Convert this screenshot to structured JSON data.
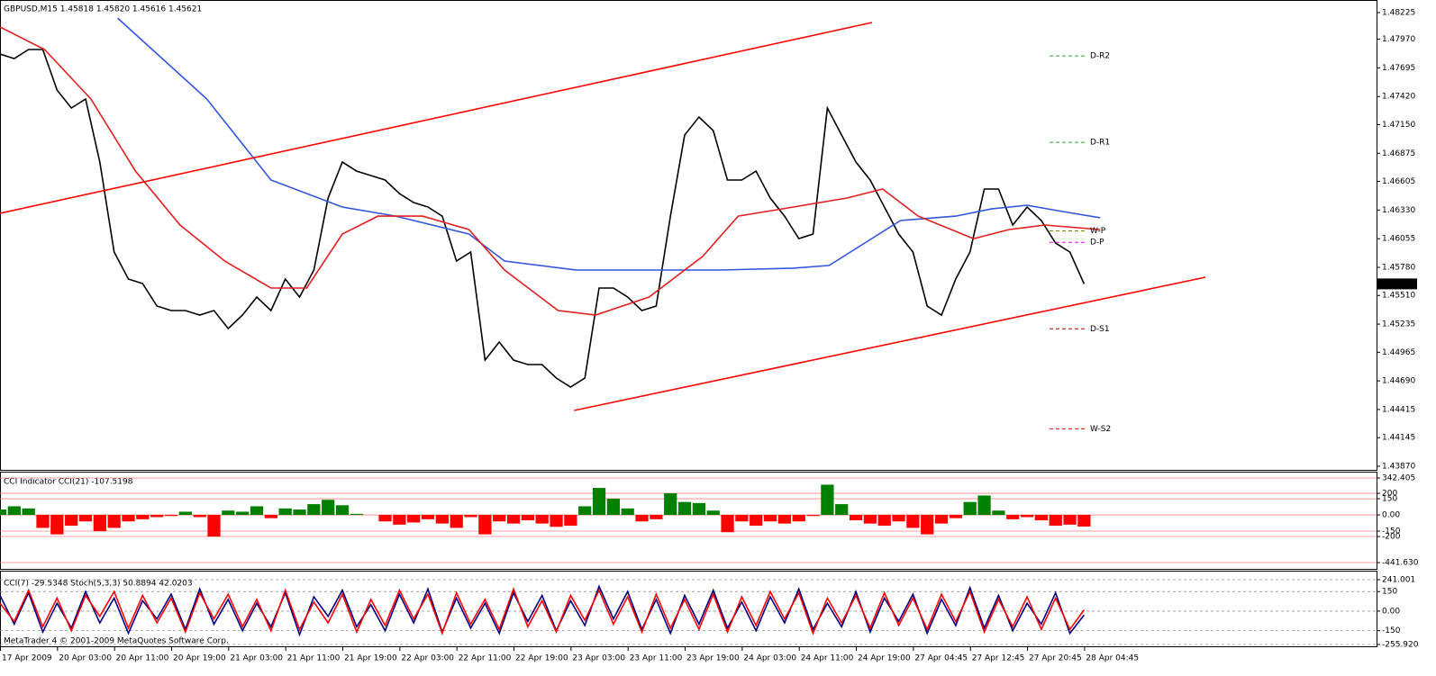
{
  "footer": "MetaTrader 4 © 2001-2009 MetaQuotes Software Corp.",
  "chart_data": [
    {
      "type": "line",
      "title": "GBPUSD,M15 1.45818 1.45820 1.45616 1.45621",
      "xlim": [
        0,
        772
      ],
      "ylim": [
        1.43853,
        1.48329
      ],
      "yticks": [
        1.48225,
        {
          "value": 1.4797,
          "label": "1.47970"
        },
        1.47695,
        {
          "value": 1.4742,
          "label": "1.47420"
        },
        {
          "value": 1.4715,
          "label": "1.47150"
        },
        1.46875,
        1.46605,
        {
          "value": 1.4633,
          "label": "1.46330"
        },
        1.46055,
        {
          "value": 1.4578,
          "label": "1.45780"
        },
        {
          "value": 1.4551,
          "label": "1.45510"
        },
        1.45235,
        1.44965,
        {
          "value": 1.4469,
          "label": "1.44690"
        },
        1.44415,
        1.44145,
        {
          "value": 1.4387,
          "label": "1.43870"
        }
      ],
      "xticks": [
        {
          "value": 0,
          "label": "17 Apr 2009"
        },
        {
          "value": 32,
          "label": "20 Apr 03:00"
        },
        {
          "value": 64,
          "label": "20 Apr 11:00"
        },
        {
          "value": 96,
          "label": "20 Apr 19:00"
        },
        {
          "value": 128,
          "label": "21 Apr 03:00"
        },
        {
          "value": 160,
          "label": "21 Apr 11:00"
        },
        {
          "value": 192,
          "label": "21 Apr 19:00"
        },
        {
          "value": 224,
          "label": "22 Apr 03:00"
        },
        {
          "value": 256,
          "label": "22 Apr 11:00"
        },
        {
          "value": 288,
          "label": "22 Apr 19:00"
        },
        {
          "value": 320,
          "label": "23 Apr 03:00"
        },
        {
          "value": 352,
          "label": "23 Apr 11:00"
        },
        {
          "value": 384,
          "label": "23 Apr 19:00"
        },
        {
          "value": 416,
          "label": "24 Apr 03:00"
        },
        {
          "value": 448,
          "label": "24 Apr 11:00"
        },
        {
          "value": 480,
          "label": "24 Apr 19:00"
        },
        {
          "value": 512,
          "label": "27 Apr 04:45"
        },
        {
          "value": 544,
          "label": "27 Apr 12:45"
        },
        {
          "value": 576,
          "label": "27 Apr 20:45"
        },
        {
          "value": 608,
          "label": "28 Apr 04:45"
        }
      ],
      "series": [
        {
          "color": "#000000",
          "x": [
            0,
            8,
            16,
            24,
            32,
            40,
            48,
            56,
            64,
            72,
            80,
            88,
            96,
            104,
            112,
            120,
            128,
            136,
            144,
            152,
            160,
            168,
            176,
            184,
            192,
            200,
            208,
            216,
            224,
            232,
            240,
            248,
            256,
            264,
            272,
            280,
            288,
            296,
            304,
            312,
            320,
            328,
            336,
            344,
            352,
            360,
            368,
            376,
            384,
            392,
            400,
            408,
            416,
            424,
            432,
            440,
            448,
            456,
            464,
            472,
            480,
            488,
            496,
            504,
            512,
            520,
            528,
            536,
            544,
            552,
            560,
            568,
            576,
            584,
            592,
            600,
            608
          ],
          "values": [
            1.47828,
            1.47784,
            1.47871,
            1.47871,
            1.47482,
            1.47309,
            1.47396,
            1.46791,
            1.45927,
            1.45668,
            1.45624,
            1.45408,
            1.45365,
            1.45365,
            1.45322,
            1.45365,
            1.45192,
            1.45322,
            1.45495,
            1.45365,
            1.45668,
            1.45495,
            1.45754,
            1.46445,
            1.46791,
            1.46704,
            1.46661,
            1.46618,
            1.46488,
            1.46402,
            1.46359,
            1.46272,
            1.4584,
            1.45927,
            1.4489,
            1.45063,
            1.4489,
            1.44847,
            1.44847,
            1.44717,
            1.44631,
            1.44717,
            1.45581,
            1.45581,
            1.45495,
            1.45365,
            1.45408,
            1.46272,
            1.4705,
            1.47223,
            1.47093,
            1.46618,
            1.46618,
            1.46704,
            1.46445,
            1.46272,
            1.46056,
            1.461,
            1.47309,
            1.4705,
            1.46791,
            1.46618,
            1.46359,
            1.461,
            1.45927,
            1.45408,
            1.45322,
            1.45668,
            1.45927,
            1.46532,
            1.46532,
            1.46186,
            1.46359,
            1.46229,
            1.46013,
            1.45927,
            1.45621
          ]
        },
        {
          "color": "#3355dd",
          "x": [
            66,
            116,
            152,
            192,
            222,
            263,
            283,
            323,
            364,
            404,
            445,
            465,
            485,
            505,
            536,
            556,
            576,
            596,
            617
          ],
          "values": [
            1.48173,
            1.47396,
            1.46618,
            1.46359,
            1.46272,
            1.461,
            1.4584,
            1.45754,
            1.45754,
            1.45754,
            1.45772,
            1.45798,
            1.46013,
            1.46229,
            1.46272,
            1.46341,
            1.46376,
            1.46316,
            1.46256
          ]
        },
        {
          "color": "#e02020",
          "x": [
            0,
            25,
            51,
            76,
            101,
            126,
            152,
            172,
            192,
            212,
            237,
            263,
            283,
            313,
            334,
            364,
            394,
            414,
            445,
            475,
            495,
            515,
            546,
            566,
            586,
            617
          ],
          "values": [
            1.48087,
            1.47871,
            1.47396,
            1.46704,
            1.46186,
            1.4584,
            1.45581,
            1.45581,
            1.461,
            1.46272,
            1.46272,
            1.46143,
            1.45754,
            1.45365,
            1.45322,
            1.45495,
            1.45884,
            1.46272,
            1.46359,
            1.46445,
            1.46532,
            1.46272,
            1.46056,
            1.46143,
            1.46186,
            1.46143
          ]
        },
        {
          "color": "#ff0000",
          "x": [
            0,
            489
          ],
          "values": [
            1.46298,
            1.4813
          ]
        },
        {
          "color": "#ff0000",
          "x": [
            322,
            676
          ],
          "values": [
            1.44406,
            1.45685
          ]
        }
      ],
      "levels": [
        {
          "label": "D-R2",
          "value": 1.4781,
          "color": "#22aa22"
        },
        {
          "label": "D-R1",
          "value": 1.4698,
          "color": "#22aa22"
        },
        {
          "label": "W-P",
          "value": 1.4613,
          "color": "#808000"
        },
        {
          "label": "D-P",
          "value": 1.4602,
          "color": "#ff00ff"
        },
        {
          "label": "D-S1",
          "value": 1.4519,
          "color": "#aa0000"
        },
        {
          "label": "W-S2",
          "value": 1.4423,
          "color": "#dd0000"
        }
      ],
      "last_price": 1.45621
    },
    {
      "type": "bar",
      "title": "CCI Indicator  CCI(21) -107.5198",
      "xlim": [
        0,
        772
      ],
      "ylim": [
        -441.63,
        342.405
      ],
      "yticks": [
        342.405,
        200,
        150,
        {
          "value": 0,
          "label": "0.00"
        },
        -150,
        -200,
        {
          "value": -441.63,
          "label": "-441.630"
        }
      ],
      "grid": true,
      "grid_color": "#f08080",
      "colors": {
        "positive": "#008000",
        "negative": "#ff0000"
      },
      "x": [
        0,
        8,
        16,
        24,
        32,
        40,
        48,
        56,
        64,
        72,
        80,
        88,
        96,
        104,
        112,
        120,
        128,
        136,
        144,
        152,
        160,
        168,
        176,
        184,
        192,
        200,
        208,
        216,
        224,
        232,
        240,
        248,
        256,
        264,
        272,
        280,
        288,
        296,
        304,
        312,
        320,
        328,
        336,
        344,
        352,
        360,
        368,
        376,
        384,
        392,
        400,
        408,
        416,
        424,
        432,
        440,
        448,
        456,
        464,
        472,
        480,
        488,
        496,
        504,
        512,
        520,
        528,
        536,
        544,
        552,
        560,
        568,
        576,
        584,
        592,
        600,
        608
      ],
      "values": [
        50,
        80,
        60,
        -120,
        -180,
        -100,
        -60,
        -150,
        -120,
        -60,
        -40,
        -20,
        -10,
        30,
        -20,
        -200,
        40,
        30,
        80,
        -30,
        60,
        50,
        100,
        140,
        90,
        10,
        0,
        -60,
        -90,
        -70,
        -40,
        -80,
        -120,
        -20,
        -180,
        -60,
        -80,
        -50,
        -80,
        -110,
        -100,
        80,
        250,
        150,
        60,
        -60,
        -40,
        200,
        120,
        110,
        40,
        -160,
        -60,
        -100,
        -60,
        -80,
        -60,
        -10,
        280,
        100,
        -50,
        -80,
        -100,
        -60,
        -120,
        -180,
        -80,
        -30,
        120,
        180,
        40,
        -40,
        -20,
        -50,
        -100,
        -90,
        -107.5198
      ]
    },
    {
      "type": "line",
      "title": "CCI(7) -29.5348  Stoch(5,3,3) 50.8894 42.0203",
      "xlim": [
        0,
        772
      ],
      "ylim": [
        -255.92,
        241.001
      ],
      "yticks": [
        241.001,
        150,
        {
          "value": 0,
          "label": "0.00"
        },
        -150,
        {
          "value": -255.92,
          "label": "-255.920"
        }
      ],
      "grid": true,
      "grid_color": "#909090",
      "grid_dash": true,
      "series": [
        {
          "color": "#000080",
          "x": [
            0,
            8,
            16,
            24,
            32,
            40,
            48,
            56,
            64,
            72,
            80,
            88,
            96,
            104,
            112,
            120,
            128,
            136,
            144,
            152,
            160,
            168,
            176,
            184,
            192,
            200,
            208,
            216,
            224,
            232,
            240,
            248,
            256,
            264,
            272,
            280,
            288,
            296,
            304,
            312,
            320,
            328,
            336,
            344,
            352,
            360,
            368,
            376,
            384,
            392,
            400,
            408,
            416,
            424,
            432,
            440,
            448,
            456,
            464,
            472,
            480,
            488,
            496,
            504,
            512,
            520,
            528,
            536,
            544,
            552,
            560,
            568,
            576,
            584,
            592,
            600,
            608
          ],
          "values": [
            120,
            -100,
            140,
            -160,
            60,
            -130,
            150,
            -90,
            100,
            -170,
            80,
            -60,
            130,
            -140,
            170,
            -100,
            90,
            -150,
            60,
            -120,
            140,
            -180,
            110,
            -40,
            160,
            -120,
            50,
            -150,
            130,
            -90,
            170,
            -160,
            100,
            -130,
            60,
            -170,
            140,
            -80,
            120,
            -150,
            80,
            -110,
            190,
            -60,
            150,
            -140,
            90,
            -170,
            120,
            -100,
            160,
            -130,
            70,
            -150,
            110,
            -90,
            170,
            -140,
            60,
            -120,
            150,
            -160,
            100,
            -80,
            130,
            -170,
            90,
            -110,
            180,
            -130,
            120,
            -150,
            60,
            -100,
            140,
            -170,
            -29.5348
          ]
        },
        {
          "color": "#ff0000",
          "x": [
            0,
            8,
            16,
            24,
            32,
            40,
            48,
            56,
            64,
            72,
            80,
            88,
            96,
            104,
            112,
            120,
            128,
            136,
            144,
            152,
            160,
            168,
            176,
            184,
            192,
            200,
            208,
            216,
            224,
            232,
            240,
            248,
            256,
            264,
            272,
            280,
            288,
            296,
            304,
            312,
            320,
            328,
            336,
            344,
            352,
            360,
            368,
            376,
            384,
            392,
            400,
            408,
            416,
            424,
            432,
            440,
            448,
            456,
            464,
            472,
            480,
            488,
            496,
            504,
            512,
            520,
            528,
            536,
            544,
            552,
            560,
            568,
            576,
            584,
            592,
            600,
            608
          ],
          "values": [
            60,
            -80,
            160,
            -120,
            100,
            -150,
            120,
            -40,
            150,
            -130,
            120,
            -90,
            100,
            -160,
            140,
            -60,
            130,
            -120,
            90,
            -150,
            160,
            -140,
            70,
            -90,
            130,
            -160,
            90,
            -110,
            160,
            -60,
            130,
            -170,
            140,
            -100,
            90,
            -140,
            170,
            -120,
            80,
            -160,
            120,
            -70,
            160,
            -100,
            110,
            -160,
            130,
            -130,
            90,
            -140,
            130,
            -160,
            110,
            -110,
            150,
            -60,
            140,
            -170,
            100,
            -90,
            120,
            -130,
            140,
            -110,
            100,
            -140,
            130,
            -80,
            150,
            -160,
            90,
            -120,
            110,
            -140,
            100,
            -140,
            10
          ]
        }
      ]
    }
  ]
}
